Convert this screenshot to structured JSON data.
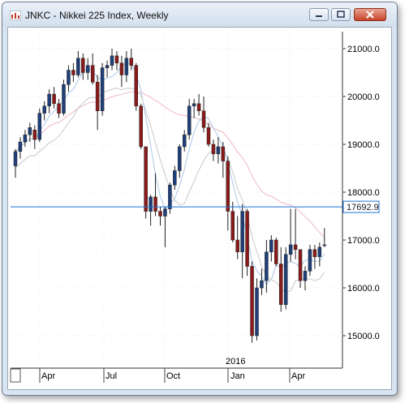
{
  "window": {
    "title": "JNKC - Nikkei 225 Index, Weekly",
    "buttons": [
      "minimize",
      "maximize",
      "close"
    ]
  },
  "chart": {
    "price_labels": [
      "21000.0",
      "20000.0",
      "19000.0",
      "18000.0",
      "17000.0",
      "16000.0",
      "15000.0"
    ],
    "hline_label": "17692.9",
    "date_labels": [
      "Apr",
      "Jul",
      "Oct",
      "Jan",
      "Apr"
    ],
    "year_label": "2016",
    "colors": {
      "up": "#1f3f7a",
      "down": "#8b1a1a",
      "hline": "#1e73d8",
      "ma_fast": "#a9c8ea",
      "ma_slow": "#f0b6c6",
      "ma_mid": "#c8c8c8"
    }
  },
  "chart_data": {
    "type": "candlestick",
    "title": "JNKC - Nikkei 225 Index, Weekly",
    "y_ticks": [
      21000,
      20000,
      19000,
      18000,
      17000,
      16000,
      15000
    ],
    "ylim": [
      14850,
      21100
    ],
    "x_ticks": [
      "Apr",
      "Jul",
      "Oct",
      "Jan",
      "Apr"
    ],
    "horizontal_line": 17692.9,
    "candles": [
      [
        18550,
        18900,
        18300,
        18850
      ],
      [
        18850,
        19150,
        18700,
        19050
      ],
      [
        19050,
        19300,
        18950,
        19200
      ],
      [
        19200,
        19450,
        19050,
        19350
      ],
      [
        19300,
        19400,
        18900,
        19100
      ],
      [
        19100,
        19750,
        19050,
        19650
      ],
      [
        19650,
        19900,
        19500,
        19800
      ],
      [
        19800,
        20150,
        19650,
        20050
      ],
      [
        20050,
        20200,
        19750,
        19850
      ],
      [
        19850,
        19950,
        19550,
        19650
      ],
      [
        19650,
        20350,
        19600,
        20250
      ],
      [
        20250,
        20650,
        20100,
        20550
      ],
      [
        20550,
        20700,
        20300,
        20450
      ],
      [
        20450,
        20950,
        20400,
        20800
      ],
      [
        20800,
        20900,
        20350,
        20500
      ],
      [
        20500,
        20800,
        20350,
        20650
      ],
      [
        20650,
        20900,
        20250,
        20300
      ],
      [
        20300,
        20450,
        19300,
        19700
      ],
      [
        19700,
        20700,
        19600,
        20600
      ],
      [
        20600,
        20750,
        20400,
        20650
      ],
      [
        20650,
        21000,
        20550,
        20850
      ],
      [
        20850,
        20950,
        20550,
        20700
      ],
      [
        20700,
        20850,
        20200,
        20450
      ],
      [
        20450,
        20950,
        20300,
        20800
      ],
      [
        20800,
        21000,
        20550,
        20650
      ],
      [
        20650,
        20700,
        19700,
        19800
      ],
      [
        19800,
        19850,
        18900,
        18950
      ],
      [
        18950,
        18950,
        17450,
        17600
      ],
      [
        17600,
        17950,
        17300,
        17900
      ],
      [
        17900,
        18400,
        17500,
        17600
      ],
      [
        17600,
        17700,
        17300,
        17500
      ],
      [
        17500,
        17700,
        16850,
        17650
      ],
      [
        17650,
        18200,
        17550,
        18150
      ],
      [
        18150,
        18550,
        18050,
        18450
      ],
      [
        18450,
        19000,
        18300,
        18950
      ],
      [
        18950,
        19300,
        18850,
        19200
      ],
      [
        19200,
        19950,
        19100,
        19800
      ],
      [
        19800,
        19950,
        19550,
        19850
      ],
      [
        19850,
        20050,
        19600,
        19700
      ],
      [
        19700,
        20000,
        19250,
        19350
      ],
      [
        19350,
        19450,
        18950,
        19000
      ],
      [
        19000,
        19100,
        18650,
        18800
      ],
      [
        18800,
        19150,
        18600,
        18950
      ],
      [
        18950,
        19050,
        18300,
        18650
      ],
      [
        18650,
        18750,
        17200,
        17600
      ],
      [
        17600,
        17800,
        16950,
        17000
      ],
      [
        17000,
        17500,
        16600,
        16750
      ],
      [
        16750,
        17750,
        16200,
        17600
      ],
      [
        17600,
        17650,
        16250,
        16450
      ],
      [
        16450,
        16550,
        14850,
        15000
      ],
      [
        15000,
        16200,
        14900,
        16000
      ],
      [
        16000,
        16400,
        15850,
        16150
      ],
      [
        16150,
        17000,
        15900,
        16750
      ],
      [
        16750,
        17100,
        16550,
        17000
      ],
      [
        17000,
        17050,
        16450,
        16500
      ],
      [
        16500,
        16850,
        15500,
        15650
      ],
      [
        15650,
        16850,
        15550,
        16700
      ],
      [
        16700,
        17650,
        16550,
        16900
      ],
      [
        16900,
        17650,
        16600,
        16800
      ],
      [
        16800,
        16800,
        16000,
        16150
      ],
      [
        16150,
        16450,
        15950,
        16350
      ],
      [
        16350,
        16900,
        16250,
        16800
      ],
      [
        16800,
        16900,
        16400,
        16650
      ],
      [
        16650,
        16950,
        16450,
        16850
      ],
      [
        16900,
        17250,
        16850,
        16900
      ]
    ],
    "year_marker": "2016"
  }
}
